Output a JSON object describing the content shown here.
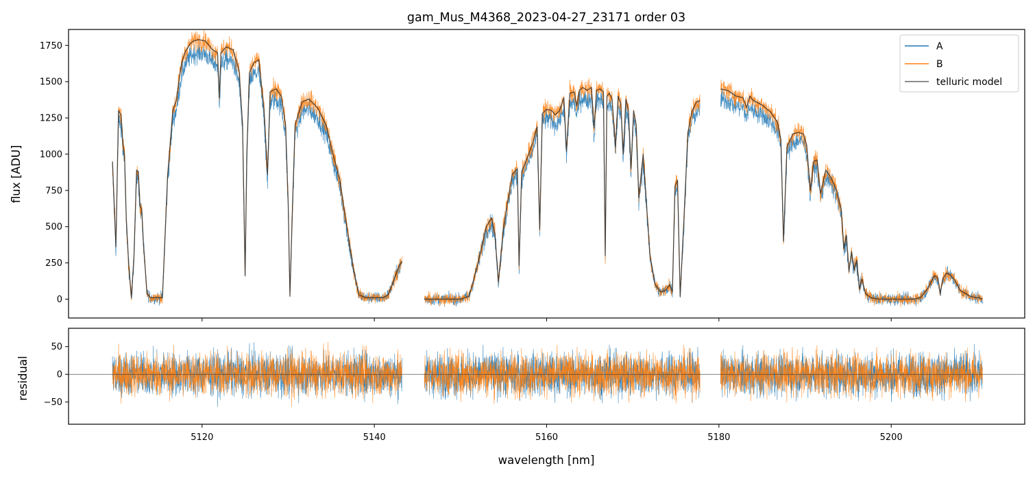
{
  "colors": {
    "A": "#1f77b4",
    "B": "#ff7f0e",
    "model": "#333333"
  },
  "chart_data": [
    {
      "type": "line",
      "title": "gam_Mus_M4368_2023-04-27_23171  order 03",
      "xlabel": "",
      "ylabel": "flux [ADU]",
      "xlim": [
        5104.5,
        5215.5
      ],
      "ylim": [
        -130,
        1860
      ],
      "xticks": [
        5120,
        5140,
        5160,
        5180,
        5200
      ],
      "yticks": [
        0,
        250,
        500,
        750,
        1000,
        1250,
        1500,
        1750
      ],
      "ytick_labels": [
        "0",
        "250",
        "500",
        "750",
        "1000",
        "1250",
        "1500",
        "1750"
      ],
      "legend": {
        "location": "upper right",
        "entries": [
          "A",
          "B",
          "telluric model"
        ]
      },
      "segments": [
        [
          5109.6,
          5143.2
        ],
        [
          5145.8,
          5177.8
        ],
        [
          5180.2,
          5210.6
        ]
      ],
      "series": [
        {
          "name": "telluric model",
          "x": [
            5109.6,
            5110.0,
            5110.3,
            5110.6,
            5110.8,
            5111.0,
            5111.2,
            5111.5,
            5111.8,
            5112.1,
            5112.4,
            5112.6,
            5112.8,
            5113.0,
            5113.2,
            5113.6,
            5114.0,
            5114.6,
            5115.4,
            5116.0,
            5116.6,
            5117.0,
            5117.6,
            5118.0,
            5118.6,
            5119.0,
            5119.6,
            5120.4,
            5121.2,
            5121.8,
            5122.0,
            5122.2,
            5122.8,
            5123.6,
            5124.3,
            5124.7,
            5125.0,
            5125.2,
            5125.5,
            5126.0,
            5126.6,
            5127.2,
            5127.6,
            5127.9,
            5128.2,
            5128.6,
            5129.2,
            5129.7,
            5130.0,
            5130.2,
            5130.5,
            5130.8,
            5131.6,
            5132.4,
            5133.4,
            5134.4,
            5135.2,
            5136.0,
            5136.8,
            5137.6,
            5138.2,
            5139.0,
            5140.0,
            5141.0,
            5141.6,
            5142.2,
            5142.8,
            5143.2
          ],
          "values": [
            950,
            360,
            1300,
            1270,
            1080,
            990,
            560,
            220,
            10,
            300,
            890,
            880,
            640,
            620,
            380,
            40,
            10,
            10,
            10,
            850,
            1300,
            1370,
            1620,
            1700,
            1760,
            1780,
            1790,
            1780,
            1720,
            1700,
            1390,
            1700,
            1740,
            1720,
            1580,
            1200,
            160,
            1000,
            1560,
            1630,
            1650,
            1300,
            860,
            1430,
            1440,
            1450,
            1400,
            1200,
            650,
            20,
            650,
            1200,
            1360,
            1380,
            1320,
            1200,
            1000,
            820,
            500,
            200,
            30,
            10,
            10,
            10,
            30,
            120,
            220,
            260
          ]
        },
        {
          "name": "telluric model",
          "x": [
            5145.8,
            5147.0,
            5148.0,
            5149.0,
            5150.0,
            5151.0,
            5152.0,
            5153.0,
            5153.6,
            5154.0,
            5154.4,
            5155.0,
            5156.0,
            5156.6,
            5156.8,
            5157.1,
            5157.6,
            5158.4,
            5158.9,
            5159.2,
            5159.5,
            5160.0,
            5160.6,
            5161.0,
            5161.5,
            5162.0,
            5162.3,
            5162.7,
            5163.2,
            5163.5,
            5163.8,
            5164.2,
            5164.7,
            5165.2,
            5165.5,
            5165.8,
            5166.2,
            5166.6,
            5166.8,
            5167.0,
            5167.3,
            5167.6,
            5168.0,
            5168.3,
            5168.6,
            5168.9,
            5169.2,
            5169.5,
            5169.8,
            5170.1,
            5170.4,
            5170.7,
            5171.2,
            5171.6,
            5172.0,
            5172.6,
            5173.2,
            5173.8,
            5174.3,
            5174.6,
            5174.9,
            5175.2,
            5175.5,
            5175.9,
            5176.4,
            5176.9,
            5177.4,
            5177.8
          ],
          "values": [
            0,
            0,
            0,
            0,
            0,
            20,
            240,
            500,
            560,
            450,
            120,
            500,
            860,
            900,
            230,
            880,
            950,
            1080,
            1190,
            480,
            1280,
            1310,
            1300,
            1270,
            1300,
            1390,
            1020,
            1420,
            1430,
            1330,
            1440,
            1460,
            1440,
            1460,
            1180,
            1440,
            1450,
            1430,
            300,
            1400,
            1420,
            1380,
            1050,
            1400,
            1350,
            1000,
            1380,
            1300,
            900,
            1300,
            1200,
            700,
            1000,
            650,
            300,
            100,
            50,
            60,
            100,
            50,
            780,
            820,
            20,
            500,
            1150,
            1300,
            1360,
            1370
          ]
        },
        {
          "name": "telluric model",
          "x": [
            5180.2,
            5181.0,
            5182.0,
            5182.8,
            5183.2,
            5183.6,
            5184.0,
            5185.0,
            5186.0,
            5186.8,
            5187.2,
            5187.5,
            5187.9,
            5188.6,
            5189.2,
            5189.8,
            5190.2,
            5190.6,
            5191.0,
            5191.4,
            5191.8,
            5192.4,
            5193.0,
            5193.6,
            5194.2,
            5194.5,
            5194.8,
            5195.1,
            5195.4,
            5195.7,
            5196.0,
            5196.3,
            5196.6,
            5197.0,
            5197.6,
            5198.6,
            5199.6,
            5200.6,
            5201.6,
            5202.6,
            5203.4,
            5204.2,
            5205.0,
            5205.4,
            5205.7,
            5206.0,
            5206.4,
            5206.8,
            5207.4,
            5208.0,
            5208.6,
            5209.2,
            5209.8,
            5210.2,
            5210.6
          ],
          "values": [
            1450,
            1440,
            1400,
            1390,
            1320,
            1400,
            1370,
            1340,
            1290,
            1220,
            1100,
            400,
            1050,
            1140,
            1150,
            1140,
            1060,
            750,
            950,
            960,
            730,
            890,
            840,
            760,
            620,
            350,
            440,
            190,
            330,
            200,
            270,
            70,
            140,
            40,
            10,
            0,
            0,
            0,
            0,
            0,
            10,
            70,
            160,
            150,
            40,
            140,
            180,
            170,
            130,
            60,
            40,
            20,
            10,
            10,
            0
          ]
        }
      ],
      "noisy_series": [
        {
          "name": "A",
          "scale": 0.95,
          "noise": 50
        },
        {
          "name": "B",
          "scale": 1.0,
          "noise": 50
        }
      ]
    },
    {
      "type": "line",
      "title": "",
      "xlabel": "wavelength [nm]",
      "ylabel": "residual",
      "xlim": [
        5104.5,
        5215.5
      ],
      "ylim": [
        -90,
        83
      ],
      "xticks": [
        5120,
        5140,
        5160,
        5180,
        5200
      ],
      "xtick_labels": [
        "5120",
        "5140",
        "5160",
        "5180",
        "5200"
      ],
      "yticks": [
        -50,
        0,
        50
      ],
      "ytick_labels": [
        "−50",
        "0",
        "50"
      ],
      "reference_line": 0,
      "series": [
        {
          "name": "A",
          "noise": 28
        },
        {
          "name": "B",
          "noise": 28
        }
      ]
    }
  ]
}
